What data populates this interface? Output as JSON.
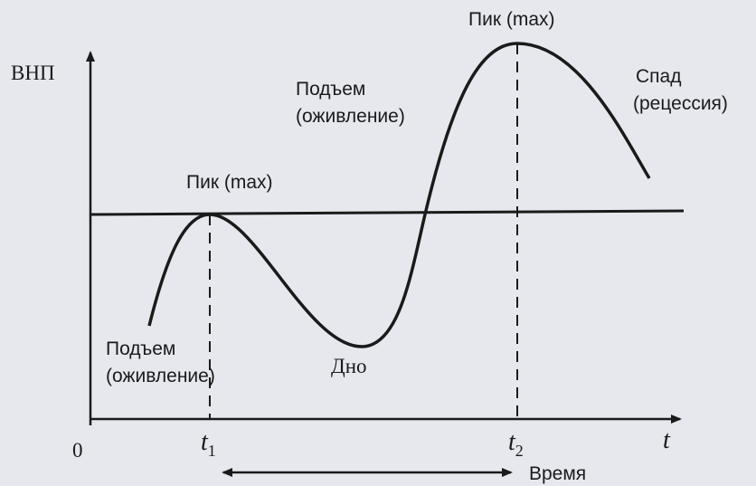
{
  "axes": {
    "y_label": "ВНП",
    "x_label": "t",
    "origin": "0"
  },
  "labels": {
    "peak_1": "Пик (max)",
    "peak_2": "Пик (max)",
    "rise_1": [
      "Подъем",
      "(оживление)"
    ],
    "rise_2": [
      "Подъем",
      "(оживление)"
    ],
    "recession": [
      "Спад",
      "(рецессия)"
    ],
    "trough": "Дно"
  },
  "time_marks": [
    {
      "symbol": "t",
      "subscript": "1"
    },
    {
      "symbol": "t",
      "subscript": "2"
    }
  ],
  "duration": "Время"
}
